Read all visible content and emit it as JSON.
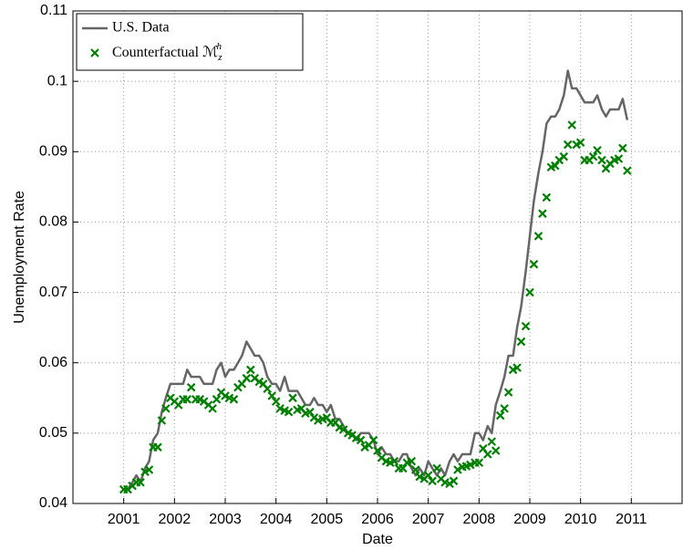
{
  "chart_data": {
    "type": "line",
    "x_label": "Date",
    "y_label": "Unemployment Rate",
    "x": [
      2001.0,
      2001.08,
      2001.17,
      2001.25,
      2001.33,
      2001.42,
      2001.5,
      2001.58,
      2001.67,
      2001.75,
      2001.83,
      2001.92,
      2002.0,
      2002.08,
      2002.17,
      2002.25,
      2002.33,
      2002.42,
      2002.5,
      2002.58,
      2002.67,
      2002.75,
      2002.83,
      2002.92,
      2003.0,
      2003.08,
      2003.17,
      2003.25,
      2003.33,
      2003.42,
      2003.5,
      2003.58,
      2003.67,
      2003.75,
      2003.83,
      2003.92,
      2004.0,
      2004.08,
      2004.17,
      2004.25,
      2004.33,
      2004.42,
      2004.5,
      2004.58,
      2004.67,
      2004.75,
      2004.83,
      2004.92,
      2005.0,
      2005.08,
      2005.17,
      2005.25,
      2005.33,
      2005.42,
      2005.5,
      2005.58,
      2005.67,
      2005.75,
      2005.83,
      2005.92,
      2006.0,
      2006.08,
      2006.17,
      2006.25,
      2006.33,
      2006.42,
      2006.5,
      2006.58,
      2006.67,
      2006.75,
      2006.83,
      2006.92,
      2007.0,
      2007.08,
      2007.17,
      2007.25,
      2007.33,
      2007.42,
      2007.5,
      2007.58,
      2007.67,
      2007.75,
      2007.83,
      2007.92,
      2008.0,
      2008.08,
      2008.17,
      2008.25,
      2008.33,
      2008.42,
      2008.5,
      2008.58,
      2008.67,
      2008.75,
      2008.83,
      2008.92,
      2009.0,
      2009.08,
      2009.17,
      2009.25,
      2009.33,
      2009.42,
      2009.5,
      2009.58,
      2009.67,
      2009.75,
      2009.83,
      2009.92,
      2010.0,
      2010.08,
      2010.17,
      2010.25,
      2010.33,
      2010.42,
      2010.5,
      2010.58,
      2010.67,
      2010.75,
      2010.83,
      2010.92
    ],
    "series": [
      {
        "name": "U.S. Data",
        "color": "#666666",
        "style": "line",
        "values": [
          0.042,
          0.042,
          0.043,
          0.044,
          0.043,
          0.045,
          0.046,
          0.049,
          0.05,
          0.053,
          0.055,
          0.057,
          0.057,
          0.057,
          0.057,
          0.059,
          0.058,
          0.058,
          0.058,
          0.057,
          0.057,
          0.057,
          0.059,
          0.06,
          0.058,
          0.059,
          0.059,
          0.06,
          0.061,
          0.063,
          0.062,
          0.061,
          0.061,
          0.06,
          0.058,
          0.057,
          0.057,
          0.056,
          0.058,
          0.056,
          0.056,
          0.056,
          0.055,
          0.054,
          0.054,
          0.055,
          0.054,
          0.054,
          0.053,
          0.054,
          0.052,
          0.052,
          0.051,
          0.05,
          0.05,
          0.049,
          0.05,
          0.05,
          0.05,
          0.049,
          0.047,
          0.048,
          0.047,
          0.047,
          0.046,
          0.046,
          0.047,
          0.047,
          0.045,
          0.044,
          0.045,
          0.044,
          0.046,
          0.045,
          0.044,
          0.045,
          0.044,
          0.046,
          0.047,
          0.046,
          0.047,
          0.047,
          0.047,
          0.05,
          0.05,
          0.049,
          0.051,
          0.05,
          0.054,
          0.056,
          0.058,
          0.061,
          0.061,
          0.065,
          0.068,
          0.073,
          0.078,
          0.083,
          0.087,
          0.09,
          0.094,
          0.095,
          0.095,
          0.096,
          0.098,
          0.1015,
          0.099,
          0.099,
          0.098,
          0.097,
          0.097,
          0.097,
          0.098,
          0.096,
          0.095,
          0.096,
          0.096,
          0.096,
          0.0975,
          0.0945
        ]
      },
      {
        "name": "Counterfactual ℳzh",
        "color": "#008000",
        "style": "marker",
        "values": [
          0.042,
          0.042,
          0.0425,
          0.043,
          0.043,
          0.0445,
          0.0448,
          0.048,
          0.048,
          0.0518,
          0.0535,
          0.055,
          0.0545,
          0.054,
          0.0548,
          0.0548,
          0.0565,
          0.0548,
          0.0548,
          0.0545,
          0.054,
          0.0535,
          0.0548,
          0.0558,
          0.0553,
          0.055,
          0.0548,
          0.0565,
          0.057,
          0.0578,
          0.059,
          0.0578,
          0.0573,
          0.057,
          0.0563,
          0.0553,
          0.0545,
          0.0535,
          0.0532,
          0.053,
          0.055,
          0.0533,
          0.0535,
          0.0528,
          0.053,
          0.0522,
          0.0518,
          0.052,
          0.0522,
          0.0515,
          0.0515,
          0.0508,
          0.0505,
          0.05,
          0.0497,
          0.0493,
          0.049,
          0.048,
          0.0483,
          0.049,
          0.0475,
          0.0465,
          0.046,
          0.0458,
          0.046,
          0.045,
          0.045,
          0.0458,
          0.046,
          0.0448,
          0.0438,
          0.0435,
          0.044,
          0.0432,
          0.045,
          0.0435,
          0.043,
          0.0428,
          0.0432,
          0.0448,
          0.0452,
          0.0453,
          0.0455,
          0.0458,
          0.0458,
          0.0478,
          0.047,
          0.0488,
          0.0475,
          0.0525,
          0.0535,
          0.0558,
          0.059,
          0.0593,
          0.063,
          0.0652,
          0.07,
          0.074,
          0.078,
          0.0812,
          0.0835,
          0.0878,
          0.088,
          0.0888,
          0.0893,
          0.091,
          0.0938,
          0.091,
          0.0913,
          0.0888,
          0.0888,
          0.0893,
          0.0902,
          0.0888,
          0.0876,
          0.0883,
          0.0888,
          0.089,
          0.0905,
          0.0873
        ]
      }
    ],
    "xlim": [
      2000,
      2012
    ],
    "xticks": [
      2001,
      2002,
      2003,
      2004,
      2005,
      2006,
      2007,
      2008,
      2009,
      2010,
      2011
    ],
    "ylim": [
      0.04,
      0.11
    ],
    "yticks": [
      0.04,
      0.05,
      0.06,
      0.07,
      0.08,
      0.09,
      0.1,
      0.11
    ],
    "grid": true,
    "legend": "upper-left"
  }
}
